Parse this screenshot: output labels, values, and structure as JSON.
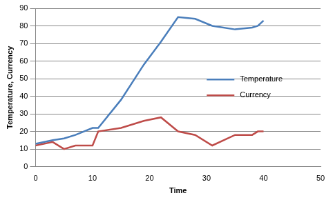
{
  "chart_data": {
    "type": "line",
    "x_label": "Time",
    "y_label": "Temperature, Currency",
    "x": [
      0,
      3,
      5,
      7,
      10,
      11,
      15,
      19,
      22,
      25,
      28,
      31,
      35,
      38,
      39,
      40
    ],
    "series": [
      {
        "name": "Temperature",
        "color": "#4a7ebb",
        "marker": "none",
        "values": [
          13,
          15,
          16,
          18,
          22,
          22,
          38,
          58,
          71,
          85,
          84,
          80,
          78,
          79,
          80,
          83
        ]
      },
      {
        "name": "Currency",
        "color": "#be4b48",
        "marker": "none",
        "values": [
          12,
          14,
          10,
          12,
          12,
          20,
          22,
          26,
          28,
          20,
          18,
          12,
          18,
          18,
          20,
          20
        ]
      }
    ],
    "xlim": [
      0,
      50
    ],
    "xticks": [
      0,
      10,
      20,
      30,
      40,
      50
    ],
    "ylim": [
      0,
      90
    ],
    "yticks": [
      0,
      10,
      20,
      30,
      40,
      50,
      60,
      70,
      80,
      90
    ],
    "grid": true,
    "legend": "right"
  }
}
